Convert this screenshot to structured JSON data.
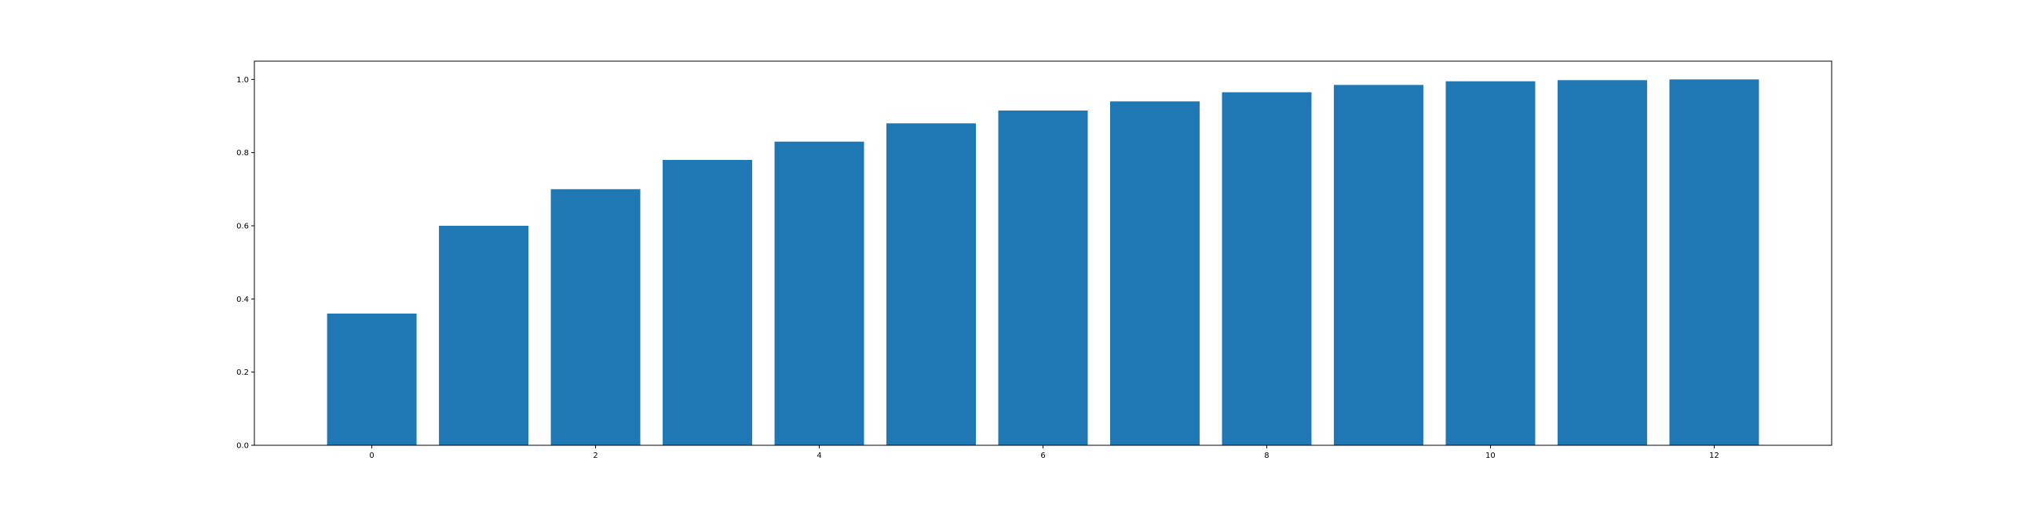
{
  "chart_data": {
    "type": "bar",
    "x": [
      0,
      1,
      2,
      3,
      4,
      5,
      6,
      7,
      8,
      9,
      10,
      11,
      12
    ],
    "values": [
      0.36,
      0.6,
      0.7,
      0.78,
      0.83,
      0.88,
      0.915,
      0.94,
      0.965,
      0.985,
      0.995,
      0.998,
      1.0
    ],
    "xlim": [
      -1.05,
      13.05
    ],
    "ylim": [
      0,
      1.05
    ],
    "x_ticks": [
      0,
      2,
      4,
      6,
      8,
      10,
      12
    ],
    "x_tick_labels": [
      "0",
      "2",
      "4",
      "6",
      "8",
      "10",
      "12"
    ],
    "y_ticks": [
      0.0,
      0.2,
      0.4,
      0.6,
      0.8,
      1.0
    ],
    "y_tick_labels": [
      "0.0",
      "0.2",
      "0.4",
      "0.6",
      "0.8",
      "1.0"
    ],
    "bar_width": 0.8,
    "bar_color": "#1f77b4",
    "grid": false,
    "legend": "none",
    "title": "",
    "xlabel": "",
    "ylabel": ""
  }
}
